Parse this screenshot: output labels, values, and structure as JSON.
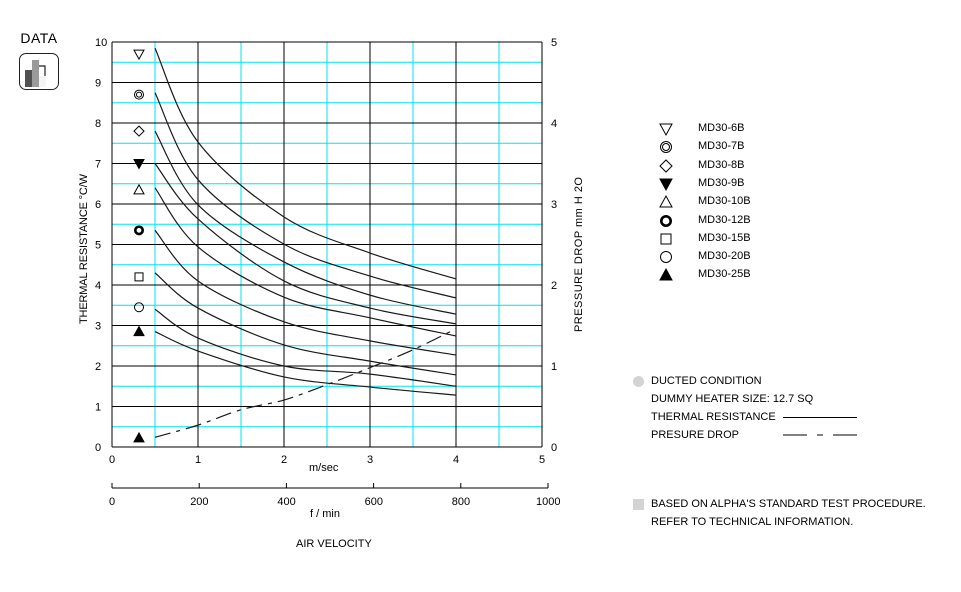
{
  "badge": {
    "label": "DATA",
    "icon": "bar-chart-icon"
  },
  "chart_data": {
    "type": "line",
    "title": "",
    "xlabel": "AIR VELOCITY",
    "x_primary": {
      "unit": "m/sec",
      "ticks": [
        0,
        1,
        2,
        3,
        4,
        5
      ],
      "range": [
        0,
        5
      ]
    },
    "x_secondary": {
      "unit": "f / min",
      "ticks": [
        0,
        200,
        400,
        600,
        800,
        1000
      ],
      "range": [
        0,
        1000
      ]
    },
    "ylabel": "THERMAL RESISTANCE  °C/W",
    "ylim": [
      0,
      10
    ],
    "yticks": [
      0,
      1,
      2,
      3,
      4,
      5,
      6,
      7,
      8,
      9,
      10
    ],
    "y2label": "PRESSURE DROP   mm H 2O",
    "y2lim": [
      0,
      5
    ],
    "y2ticks": [
      0,
      1,
      2,
      3,
      4,
      5
    ],
    "grid": true,
    "x": [
      0.5,
      1.0,
      2.0,
      3.0,
      4.0
    ],
    "series": [
      {
        "name": "MD30-6B",
        "marker": "triangle-down-open",
        "marker_y": 9.7,
        "values": [
          9.85,
          7.53,
          5.68,
          4.79,
          4.15
        ]
      },
      {
        "name": "MD30-7B",
        "marker": "double-circle",
        "marker_y": 8.7,
        "values": [
          8.75,
          6.6,
          5.01,
          4.22,
          3.68
        ]
      },
      {
        "name": "MD30-8B",
        "marker": "diamond-open",
        "marker_y": 7.8,
        "values": [
          7.8,
          5.98,
          4.57,
          3.75,
          3.28
        ]
      },
      {
        "name": "MD30-9B",
        "marker": "triangle-down-filled",
        "marker_y": 7.0,
        "values": [
          7.0,
          5.63,
          4.1,
          3.43,
          3.04
        ]
      },
      {
        "name": "MD30-10B",
        "marker": "triangle-up-open",
        "marker_y": 6.35,
        "values": [
          6.4,
          4.94,
          3.7,
          3.19,
          2.74
        ]
      },
      {
        "name": "MD30-12B",
        "marker": "circle-bold",
        "marker_y": 5.35,
        "values": [
          5.35,
          4.1,
          3.09,
          2.62,
          2.27
        ]
      },
      {
        "name": "MD30-15B",
        "marker": "square-open",
        "marker_y": 4.2,
        "values": [
          4.3,
          3.43,
          2.52,
          2.12,
          1.78
        ]
      },
      {
        "name": "MD30-20B",
        "marker": "circle-open",
        "marker_y": 3.45,
        "values": [
          3.4,
          2.69,
          2.0,
          1.8,
          1.5
        ]
      },
      {
        "name": "MD30-25B",
        "marker": "triangle-up-filled",
        "marker_y": 2.85,
        "values": [
          2.85,
          2.37,
          1.73,
          1.48,
          1.28
        ]
      }
    ],
    "pressure_drop": {
      "name": "PRESURE DROP",
      "axis": "y2",
      "marker": "triangle-up-filled",
      "marker_y": 0.15,
      "x": [
        0.5,
        1.0,
        1.5,
        2.0,
        2.5,
        3.0,
        3.5,
        4.0
      ],
      "values": [
        0.12,
        0.27,
        0.46,
        0.58,
        0.77,
        0.98,
        1.2,
        1.46
      ]
    },
    "legend_position": "right"
  },
  "notes": {
    "ducted": "DUCTED CONDITION",
    "heater": "DUMMY HEATER SIZE: 12.7 SQ",
    "thermal_label": "THERMAL RESISTANCE",
    "pressure_label": "PRESURE DROP",
    "footnote_1": "BASED ON ALPHA'S STANDARD TEST PROCEDURE.",
    "footnote_2": "REFER TO TECHNICAL INFORMATION."
  },
  "colors": {
    "grid_major": "#000000",
    "grid_minor": "#00e5ee",
    "curve": "#1a1a1a",
    "bullet": "#d3d3d3"
  }
}
